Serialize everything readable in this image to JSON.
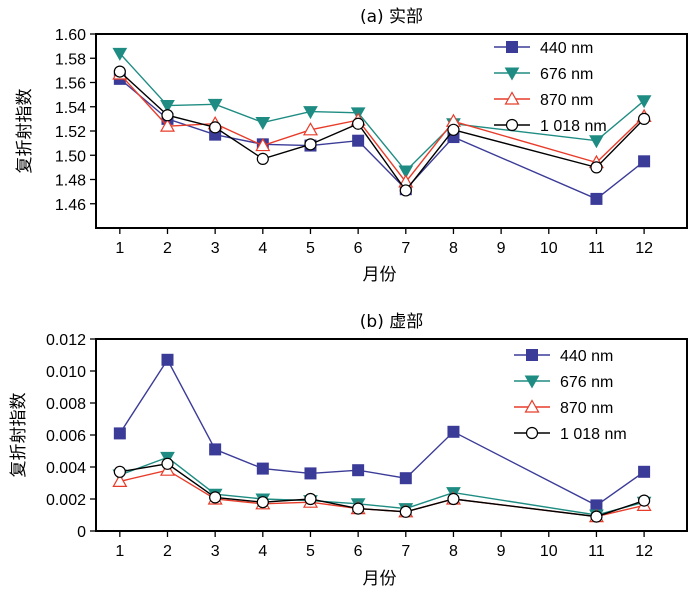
{
  "chart_data": [
    {
      "type": "line",
      "title": "(a) 实部",
      "xlabel": "月份",
      "ylabel": "复折射指数",
      "x": [
        1,
        2,
        3,
        4,
        5,
        6,
        7,
        8,
        9,
        10,
        11,
        12
      ],
      "x_tick_labels": [
        "1",
        "2",
        "3",
        "4",
        "5",
        "6",
        "7",
        "8",
        "9",
        "10",
        "11",
        "12"
      ],
      "xlim": [
        0.5,
        12.9
      ],
      "ylim": [
        1.44,
        1.6
      ],
      "y_ticks": [
        1.46,
        1.48,
        1.5,
        1.52,
        1.54,
        1.56,
        1.58,
        1.6
      ],
      "y_tick_labels": [
        "1.46",
        "1.48",
        "1.50",
        "1.52",
        "1.54",
        "1.56",
        "1.58",
        "1.60"
      ],
      "legend_position": "top-right",
      "grid": false,
      "series": [
        {
          "name": "440 nm",
          "color": "#3b3b98",
          "marker": "square",
          "x": [
            1,
            2,
            3,
            4,
            5,
            6,
            7,
            8,
            11,
            12
          ],
          "values": [
            1.563,
            1.53,
            1.517,
            1.509,
            1.508,
            1.512,
            1.472,
            1.515,
            1.464,
            1.495
          ]
        },
        {
          "name": "676 nm",
          "color": "#1e8c82",
          "marker": "triangle-down",
          "x": [
            1,
            2,
            3,
            4,
            5,
            6,
            7,
            8,
            11,
            12
          ],
          "values": [
            1.584,
            1.541,
            1.542,
            1.527,
            1.536,
            1.535,
            1.487,
            1.526,
            1.512,
            1.545
          ]
        },
        {
          "name": "870 nm",
          "color": "#e83c2a",
          "marker": "triangle-up-open",
          "x": [
            1,
            2,
            3,
            4,
            5,
            6,
            7,
            8,
            11,
            12
          ],
          "values": [
            1.567,
            1.524,
            1.526,
            1.508,
            1.521,
            1.529,
            1.478,
            1.528,
            1.494,
            1.532
          ]
        },
        {
          "name": "1 018 nm",
          "color": "#000000",
          "marker": "circle-open",
          "x": [
            1,
            2,
            3,
            4,
            5,
            6,
            7,
            8,
            11,
            12
          ],
          "values": [
            1.569,
            1.533,
            1.523,
            1.497,
            1.509,
            1.526,
            1.471,
            1.521,
            1.49,
            1.53
          ]
        }
      ]
    },
    {
      "type": "line",
      "title": "(b) 虚部",
      "xlabel": "月份",
      "ylabel": "复折射指数",
      "x": [
        1,
        2,
        3,
        4,
        5,
        6,
        7,
        8,
        9,
        10,
        11,
        12
      ],
      "x_tick_labels": [
        "1",
        "2",
        "3",
        "4",
        "5",
        "6",
        "7",
        "8",
        "9",
        "10",
        "11",
        "12"
      ],
      "xlim": [
        0.5,
        12.9
      ],
      "ylim": [
        0,
        0.012
      ],
      "y_ticks": [
        0,
        0.002,
        0.004,
        0.006,
        0.008,
        0.01,
        0.012
      ],
      "y_tick_labels": [
        "0",
        "0.002",
        "0.004",
        "0.006",
        "0.008",
        "0.010",
        "0.012"
      ],
      "legend_position": "top-right",
      "grid": false,
      "series": [
        {
          "name": "440 nm",
          "color": "#3b3b98",
          "marker": "square",
          "x": [
            1,
            2,
            3,
            4,
            5,
            6,
            7,
            8,
            11,
            12
          ],
          "values": [
            0.0061,
            0.0107,
            0.0051,
            0.0039,
            0.0036,
            0.0038,
            0.0033,
            0.0062,
            0.0016,
            0.0037
          ]
        },
        {
          "name": "676 nm",
          "color": "#1e8c82",
          "marker": "triangle-down",
          "x": [
            1,
            2,
            3,
            4,
            5,
            6,
            7,
            8,
            11,
            12
          ],
          "values": [
            0.0035,
            0.0046,
            0.0023,
            0.002,
            0.0019,
            0.0017,
            0.0014,
            0.0024,
            0.001,
            0.0018
          ]
        },
        {
          "name": "870 nm",
          "color": "#e83c2a",
          "marker": "triangle-up-open",
          "x": [
            1,
            2,
            3,
            4,
            5,
            6,
            7,
            8,
            11,
            12
          ],
          "values": [
            0.0031,
            0.0038,
            0.002,
            0.0017,
            0.0018,
            0.0014,
            0.0012,
            0.002,
            0.0009,
            0.0016
          ]
        },
        {
          "name": "1 018 nm",
          "color": "#000000",
          "marker": "circle-open",
          "x": [
            1,
            2,
            3,
            4,
            5,
            6,
            7,
            8,
            11,
            12
          ],
          "values": [
            0.0037,
            0.0042,
            0.0021,
            0.0018,
            0.002,
            0.0014,
            0.0012,
            0.002,
            0.0009,
            0.0019
          ]
        }
      ]
    }
  ]
}
